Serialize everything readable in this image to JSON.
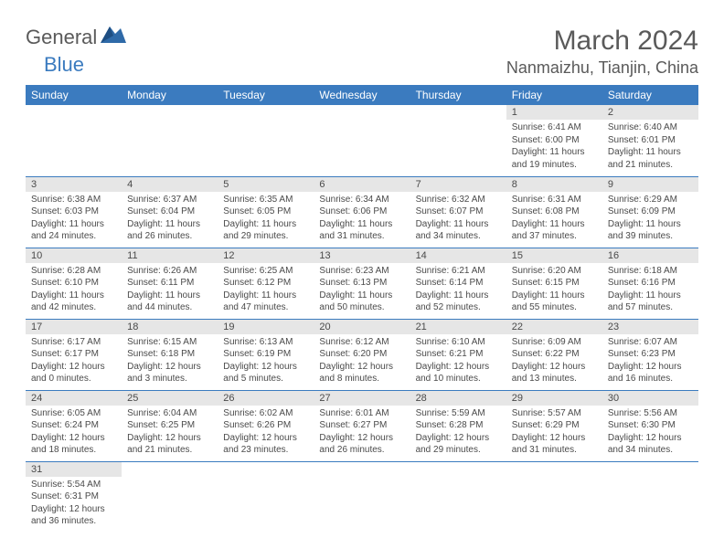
{
  "logo": {
    "general": "General",
    "blue": "Blue"
  },
  "title": "March 2024",
  "location": "Nanmaizhu, Tianjin, China",
  "colors": {
    "header_bg": "#3b7bbf",
    "header_text": "#ffffff",
    "daynum_bg": "#e6e6e6",
    "text": "#4a4a4a",
    "rule": "#3b7bbf"
  },
  "weekdays": [
    "Sunday",
    "Monday",
    "Tuesday",
    "Wednesday",
    "Thursday",
    "Friday",
    "Saturday"
  ],
  "weeks": [
    [
      null,
      null,
      null,
      null,
      null,
      {
        "n": "1",
        "sr": "Sunrise: 6:41 AM",
        "ss": "Sunset: 6:00 PM",
        "d1": "Daylight: 11 hours",
        "d2": "and 19 minutes."
      },
      {
        "n": "2",
        "sr": "Sunrise: 6:40 AM",
        "ss": "Sunset: 6:01 PM",
        "d1": "Daylight: 11 hours",
        "d2": "and 21 minutes."
      }
    ],
    [
      {
        "n": "3",
        "sr": "Sunrise: 6:38 AM",
        "ss": "Sunset: 6:03 PM",
        "d1": "Daylight: 11 hours",
        "d2": "and 24 minutes."
      },
      {
        "n": "4",
        "sr": "Sunrise: 6:37 AM",
        "ss": "Sunset: 6:04 PM",
        "d1": "Daylight: 11 hours",
        "d2": "and 26 minutes."
      },
      {
        "n": "5",
        "sr": "Sunrise: 6:35 AM",
        "ss": "Sunset: 6:05 PM",
        "d1": "Daylight: 11 hours",
        "d2": "and 29 minutes."
      },
      {
        "n": "6",
        "sr": "Sunrise: 6:34 AM",
        "ss": "Sunset: 6:06 PM",
        "d1": "Daylight: 11 hours",
        "d2": "and 31 minutes."
      },
      {
        "n": "7",
        "sr": "Sunrise: 6:32 AM",
        "ss": "Sunset: 6:07 PM",
        "d1": "Daylight: 11 hours",
        "d2": "and 34 minutes."
      },
      {
        "n": "8",
        "sr": "Sunrise: 6:31 AM",
        "ss": "Sunset: 6:08 PM",
        "d1": "Daylight: 11 hours",
        "d2": "and 37 minutes."
      },
      {
        "n": "9",
        "sr": "Sunrise: 6:29 AM",
        "ss": "Sunset: 6:09 PM",
        "d1": "Daylight: 11 hours",
        "d2": "and 39 minutes."
      }
    ],
    [
      {
        "n": "10",
        "sr": "Sunrise: 6:28 AM",
        "ss": "Sunset: 6:10 PM",
        "d1": "Daylight: 11 hours",
        "d2": "and 42 minutes."
      },
      {
        "n": "11",
        "sr": "Sunrise: 6:26 AM",
        "ss": "Sunset: 6:11 PM",
        "d1": "Daylight: 11 hours",
        "d2": "and 44 minutes."
      },
      {
        "n": "12",
        "sr": "Sunrise: 6:25 AM",
        "ss": "Sunset: 6:12 PM",
        "d1": "Daylight: 11 hours",
        "d2": "and 47 minutes."
      },
      {
        "n": "13",
        "sr": "Sunrise: 6:23 AM",
        "ss": "Sunset: 6:13 PM",
        "d1": "Daylight: 11 hours",
        "d2": "and 50 minutes."
      },
      {
        "n": "14",
        "sr": "Sunrise: 6:21 AM",
        "ss": "Sunset: 6:14 PM",
        "d1": "Daylight: 11 hours",
        "d2": "and 52 minutes."
      },
      {
        "n": "15",
        "sr": "Sunrise: 6:20 AM",
        "ss": "Sunset: 6:15 PM",
        "d1": "Daylight: 11 hours",
        "d2": "and 55 minutes."
      },
      {
        "n": "16",
        "sr": "Sunrise: 6:18 AM",
        "ss": "Sunset: 6:16 PM",
        "d1": "Daylight: 11 hours",
        "d2": "and 57 minutes."
      }
    ],
    [
      {
        "n": "17",
        "sr": "Sunrise: 6:17 AM",
        "ss": "Sunset: 6:17 PM",
        "d1": "Daylight: 12 hours",
        "d2": "and 0 minutes."
      },
      {
        "n": "18",
        "sr": "Sunrise: 6:15 AM",
        "ss": "Sunset: 6:18 PM",
        "d1": "Daylight: 12 hours",
        "d2": "and 3 minutes."
      },
      {
        "n": "19",
        "sr": "Sunrise: 6:13 AM",
        "ss": "Sunset: 6:19 PM",
        "d1": "Daylight: 12 hours",
        "d2": "and 5 minutes."
      },
      {
        "n": "20",
        "sr": "Sunrise: 6:12 AM",
        "ss": "Sunset: 6:20 PM",
        "d1": "Daylight: 12 hours",
        "d2": "and 8 minutes."
      },
      {
        "n": "21",
        "sr": "Sunrise: 6:10 AM",
        "ss": "Sunset: 6:21 PM",
        "d1": "Daylight: 12 hours",
        "d2": "and 10 minutes."
      },
      {
        "n": "22",
        "sr": "Sunrise: 6:09 AM",
        "ss": "Sunset: 6:22 PM",
        "d1": "Daylight: 12 hours",
        "d2": "and 13 minutes."
      },
      {
        "n": "23",
        "sr": "Sunrise: 6:07 AM",
        "ss": "Sunset: 6:23 PM",
        "d1": "Daylight: 12 hours",
        "d2": "and 16 minutes."
      }
    ],
    [
      {
        "n": "24",
        "sr": "Sunrise: 6:05 AM",
        "ss": "Sunset: 6:24 PM",
        "d1": "Daylight: 12 hours",
        "d2": "and 18 minutes."
      },
      {
        "n": "25",
        "sr": "Sunrise: 6:04 AM",
        "ss": "Sunset: 6:25 PM",
        "d1": "Daylight: 12 hours",
        "d2": "and 21 minutes."
      },
      {
        "n": "26",
        "sr": "Sunrise: 6:02 AM",
        "ss": "Sunset: 6:26 PM",
        "d1": "Daylight: 12 hours",
        "d2": "and 23 minutes."
      },
      {
        "n": "27",
        "sr": "Sunrise: 6:01 AM",
        "ss": "Sunset: 6:27 PM",
        "d1": "Daylight: 12 hours",
        "d2": "and 26 minutes."
      },
      {
        "n": "28",
        "sr": "Sunrise: 5:59 AM",
        "ss": "Sunset: 6:28 PM",
        "d1": "Daylight: 12 hours",
        "d2": "and 29 minutes."
      },
      {
        "n": "29",
        "sr": "Sunrise: 5:57 AM",
        "ss": "Sunset: 6:29 PM",
        "d1": "Daylight: 12 hours",
        "d2": "and 31 minutes."
      },
      {
        "n": "30",
        "sr": "Sunrise: 5:56 AM",
        "ss": "Sunset: 6:30 PM",
        "d1": "Daylight: 12 hours",
        "d2": "and 34 minutes."
      }
    ],
    [
      {
        "n": "31",
        "sr": "Sunrise: 5:54 AM",
        "ss": "Sunset: 6:31 PM",
        "d1": "Daylight: 12 hours",
        "d2": "and 36 minutes."
      },
      null,
      null,
      null,
      null,
      null,
      null
    ]
  ]
}
